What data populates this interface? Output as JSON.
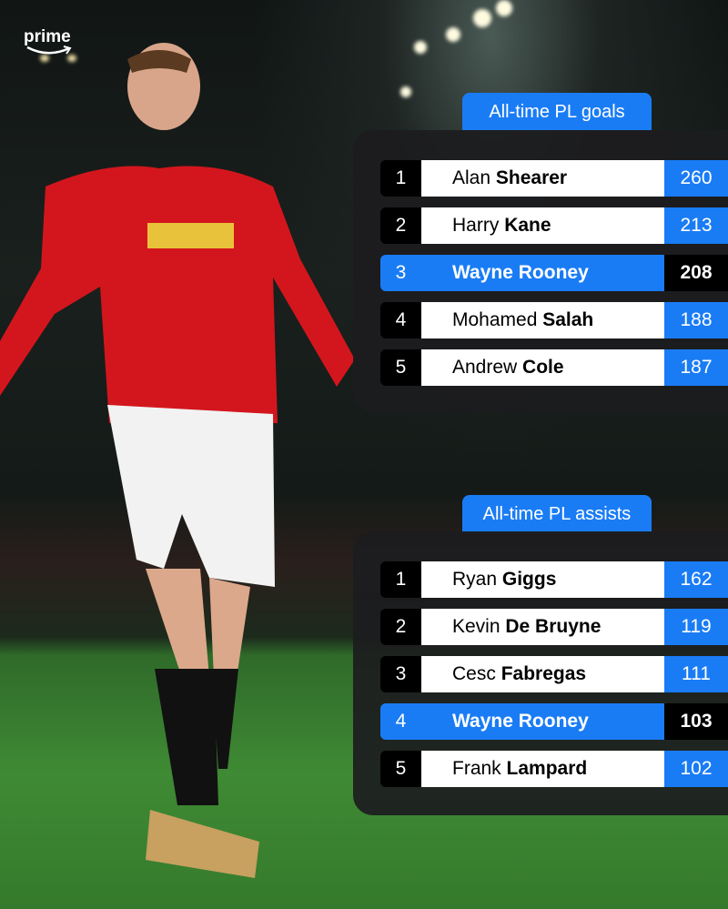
{
  "brand": {
    "logo_text": "prime"
  },
  "colors": {
    "accent": "#1a7cf5",
    "row_bg": "#ffffff",
    "rank_bg": "#000000"
  },
  "goals": {
    "title": "All-time PL goals",
    "rows": [
      {
        "rank": "1",
        "first": "Alan",
        "last": "Shearer",
        "value": "260",
        "highlight": false
      },
      {
        "rank": "2",
        "first": "Harry",
        "last": "Kane",
        "value": "213",
        "highlight": false
      },
      {
        "rank": "3",
        "first": "Wayne",
        "last": "Rooney",
        "value": "208",
        "highlight": true
      },
      {
        "rank": "4",
        "first": "Mohamed",
        "last": "Salah",
        "value": "188",
        "highlight": false
      },
      {
        "rank": "5",
        "first": "Andrew",
        "last": "Cole",
        "value": "187",
        "highlight": false
      }
    ]
  },
  "assists": {
    "title": "All-time PL assists",
    "rows": [
      {
        "rank": "1",
        "first": "Ryan",
        "last": "Giggs",
        "value": "162",
        "highlight": false
      },
      {
        "rank": "2",
        "first": "Kevin",
        "last": "De Bruyne",
        "value": "119",
        "highlight": false
      },
      {
        "rank": "3",
        "first": "Cesc",
        "last": "Fabregas",
        "value": "111",
        "highlight": false
      },
      {
        "rank": "4",
        "first": "Wayne",
        "last": "Rooney",
        "value": "103",
        "highlight": true
      },
      {
        "rank": "5",
        "first": "Frank",
        "last": "Lampard",
        "value": "102",
        "highlight": false
      }
    ]
  }
}
